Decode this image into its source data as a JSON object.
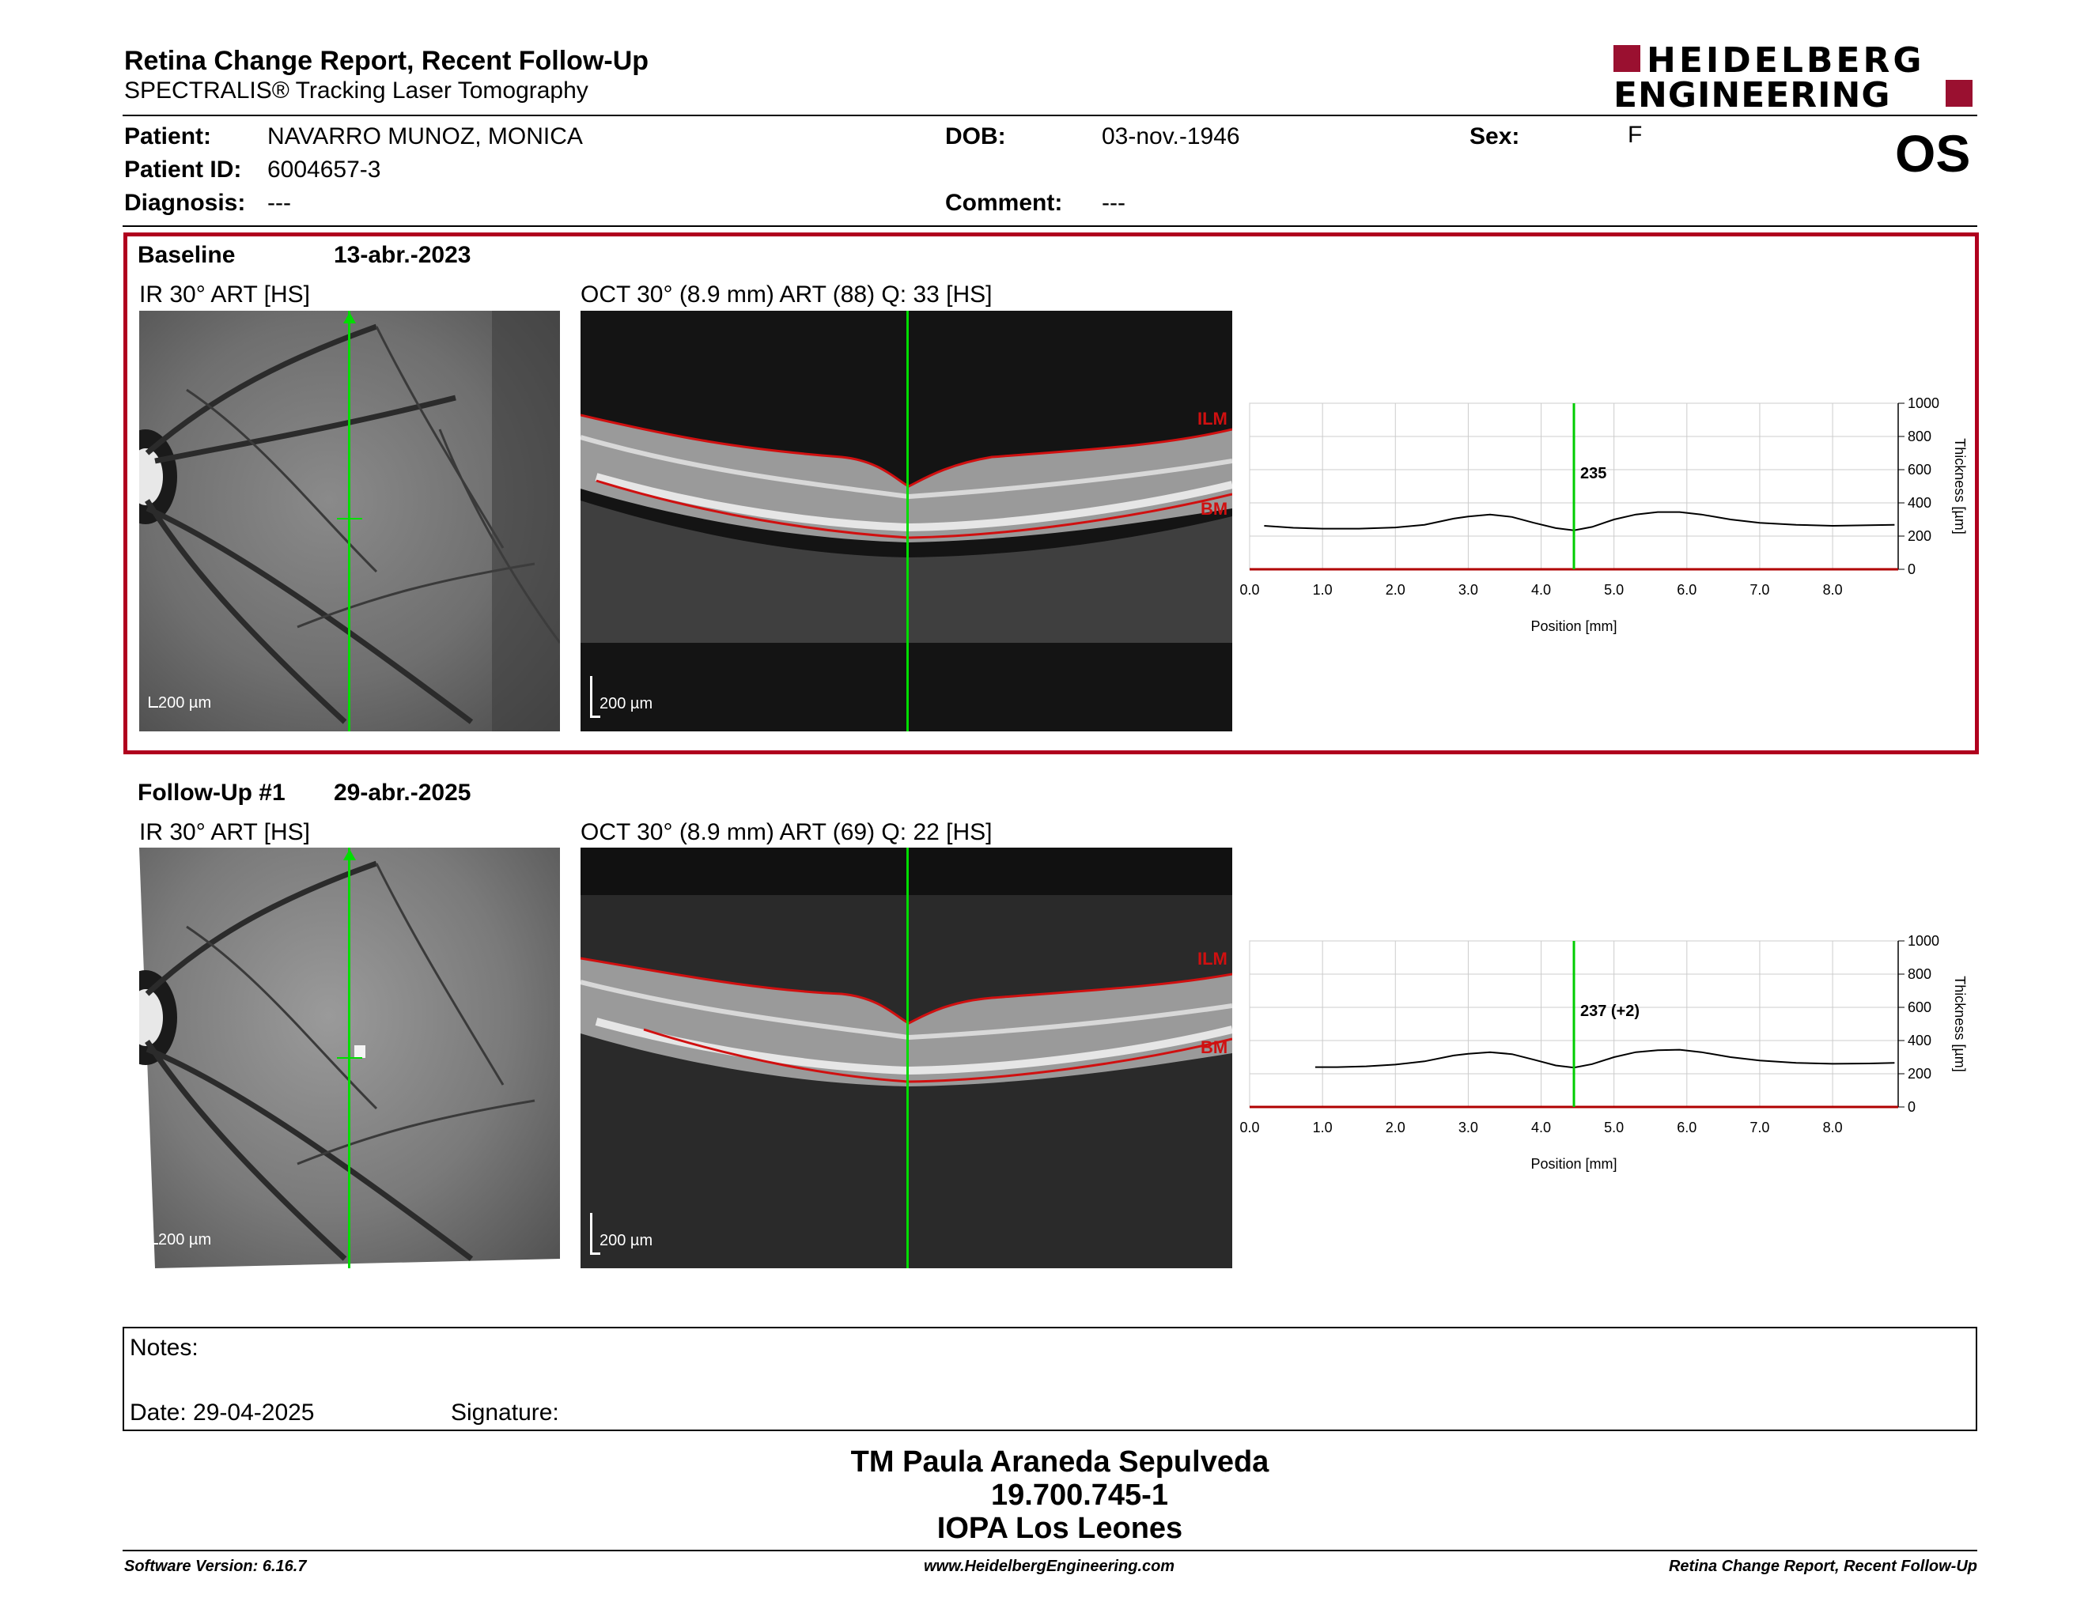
{
  "header": {
    "title": "Retina Change Report, Recent Follow-Up",
    "subtitle": "SPECTRALIS® Tracking Laser Tomography",
    "logo_line1": "HEIDELBERG",
    "logo_line2": "ENGINEERING",
    "eye": "OS"
  },
  "patient": {
    "patient_label": "Patient:",
    "patient_value": "NAVARRO MUNOZ, MONICA",
    "id_label": "Patient ID:",
    "id_value": "6004657-3",
    "diagnosis_label": "Diagnosis:",
    "diagnosis_value": "---",
    "dob_label": "DOB:",
    "dob_value": "03-nov.-1946",
    "comment_label": "Comment:",
    "comment_value": "---",
    "sex_label": "Sex:",
    "sex_value": "F"
  },
  "baseline": {
    "label": "Baseline",
    "date": "13-abr.-2023",
    "ir_title": "IR 30° ART [HS]",
    "oct_title": "OCT 30° (8.9 mm) ART (88) Q: 33 [HS]",
    "scale_ir": "200 µm",
    "scale_oct": "200 µm",
    "ilm": "ILM",
    "bm": "BM"
  },
  "followup": {
    "label": "Follow-Up #1",
    "date": "29-abr.-2025",
    "ir_title": "IR 30° ART [HS]",
    "oct_title": "OCT 30° (8.9 mm) ART (69) Q: 22 [HS]",
    "scale_ir": "200 µm",
    "scale_oct": "200 µm",
    "ilm": "ILM",
    "bm": "BM"
  },
  "chart_data": [
    {
      "type": "line",
      "xlabel": "Position [mm]",
      "ylabel": "Thickness [µm]",
      "xlim": [
        0,
        8.9
      ],
      "ylim": [
        0,
        1000
      ],
      "x_ticks": [
        "0.0",
        "1.0",
        "2.0",
        "3.0",
        "4.0",
        "5.0",
        "6.0",
        "7.0",
        "8.0"
      ],
      "y_ticks": [
        "0",
        "200",
        "400",
        "600",
        "800",
        "1000"
      ],
      "cursor_x": 4.45,
      "cursor_label": "235",
      "series": [
        {
          "x": [
            0.2,
            0.6,
            1.0,
            1.5,
            2.0,
            2.4,
            2.8,
            3.0,
            3.3,
            3.6,
            3.9,
            4.2,
            4.45,
            4.7,
            5.0,
            5.3,
            5.6,
            5.9,
            6.2,
            6.6,
            7.0,
            7.5,
            8.0,
            8.5,
            8.85
          ],
          "y": [
            262,
            250,
            245,
            245,
            252,
            268,
            305,
            318,
            330,
            315,
            280,
            248,
            235,
            255,
            300,
            330,
            345,
            345,
            330,
            300,
            280,
            268,
            262,
            265,
            268
          ]
        }
      ],
      "colors": {
        "line": "#000000",
        "cursor": "#00cc00",
        "baseline_axis": "#b00000"
      }
    },
    {
      "type": "line",
      "xlabel": "Position [mm]",
      "ylabel": "Thickness [µm]",
      "xlim": [
        0,
        8.9
      ],
      "ylim": [
        0,
        1000
      ],
      "x_ticks": [
        "0.0",
        "1.0",
        "2.0",
        "3.0",
        "4.0",
        "5.0",
        "6.0",
        "7.0",
        "8.0"
      ],
      "y_ticks": [
        "0",
        "200",
        "400",
        "600",
        "800",
        "1000"
      ],
      "cursor_x": 4.45,
      "cursor_label": "237 (+2)",
      "series": [
        {
          "x": [
            0.9,
            1.2,
            1.6,
            2.0,
            2.4,
            2.8,
            3.0,
            3.3,
            3.6,
            3.9,
            4.2,
            4.45,
            4.7,
            5.0,
            5.3,
            5.6,
            5.9,
            6.2,
            6.6,
            7.0,
            7.5,
            8.0,
            8.5,
            8.85
          ],
          "y": [
            240,
            240,
            245,
            255,
            275,
            310,
            320,
            330,
            318,
            285,
            250,
            237,
            258,
            300,
            330,
            342,
            345,
            330,
            300,
            280,
            265,
            260,
            262,
            265
          ]
        }
      ],
      "colors": {
        "line": "#000000",
        "cursor": "#00cc00",
        "baseline_axis": "#b00000"
      }
    }
  ],
  "notes": {
    "notes_label": "Notes:",
    "date_label": "Date: 29-04-2025",
    "signature_label": "Signature:"
  },
  "stamp": {
    "line1": "TM Paula Araneda Sepulveda",
    "line2": "19.700.745-1",
    "line3": "IOPA Los Leones"
  },
  "footer": {
    "left": "Software Version: 6.16.7",
    "center": "www.HeidelbergEngineering.com",
    "right": "Retina Change Report, Recent Follow-Up"
  },
  "colors": {
    "accent_red": "#b0001e",
    "cursor_green": "#00dd00",
    "layer_red": "#d01010"
  }
}
